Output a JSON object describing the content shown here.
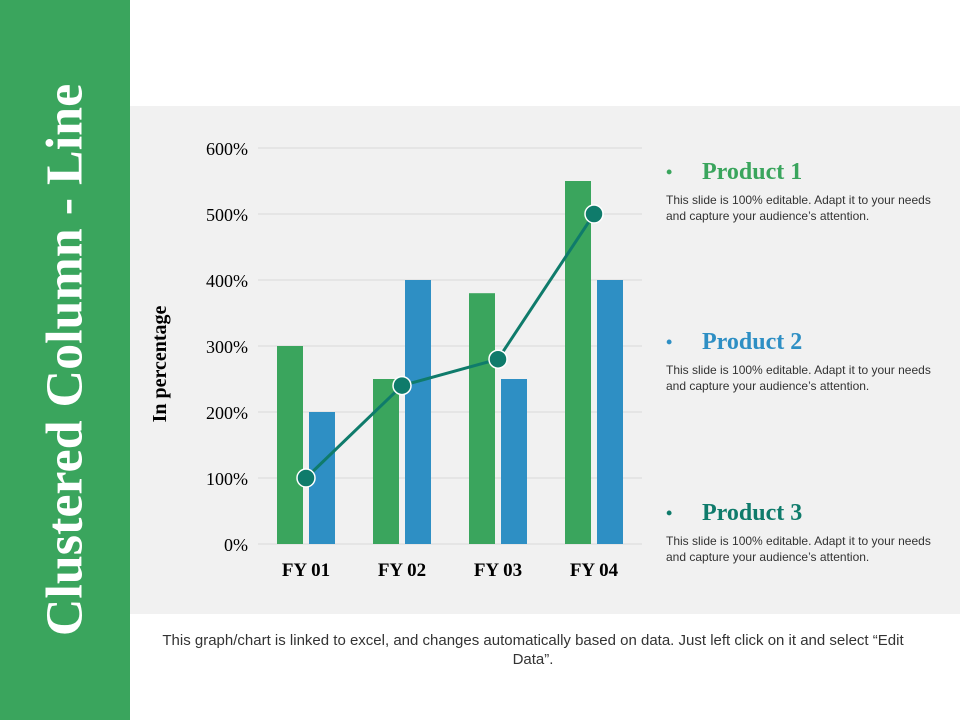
{
  "slide": {
    "title": "Clustered Column - Line",
    "footnote": "This graph/chart is linked to excel, and changes automatically based on data. Just left click on it and select “Edit Data”."
  },
  "colors": {
    "sidebar": "#3aa55d",
    "product1": "#3aa55d",
    "product2": "#2e8fc4",
    "product3": "#0f7b6b",
    "panel": "#f1f1f1"
  },
  "legend": {
    "items": [
      {
        "bullet": "•",
        "title": "Product 1",
        "desc": "This slide is 100% editable. Adapt it to your needs and capture your audience’s attention.",
        "color": "#3aa55d"
      },
      {
        "bullet": "•",
        "title": "Product 2",
        "desc": "This slide is 100% editable. Adapt it to your needs and capture your audience’s attention.",
        "color": "#2e8fc4"
      },
      {
        "bullet": "•",
        "title": "Product 3",
        "desc": "This slide is 100% editable. Adapt it to your needs and capture your audience’s attention.",
        "color": "#0f7b6b"
      }
    ]
  },
  "chart_data": {
    "type": "bar",
    "categories": [
      "FY 01",
      "FY 02",
      "FY 03",
      "FY 04"
    ],
    "series": [
      {
        "name": "Product 1",
        "type": "bar",
        "values": [
          300,
          250,
          380,
          550
        ],
        "color": "#3aa55d"
      },
      {
        "name": "Product 2",
        "type": "bar",
        "values": [
          200,
          400,
          250,
          400
        ],
        "color": "#2e8fc4"
      },
      {
        "name": "Product 3",
        "type": "line",
        "values": [
          100,
          240,
          280,
          500
        ],
        "color": "#0f7b6b"
      }
    ],
    "ylabel": "In percentage",
    "ylim": [
      0,
      600
    ],
    "yticks": [
      0,
      100,
      200,
      300,
      400,
      500,
      600
    ],
    "ytick_labels": [
      "0%",
      "100%",
      "200%",
      "300%",
      "400%",
      "500%",
      "600%"
    ],
    "grid": true
  }
}
